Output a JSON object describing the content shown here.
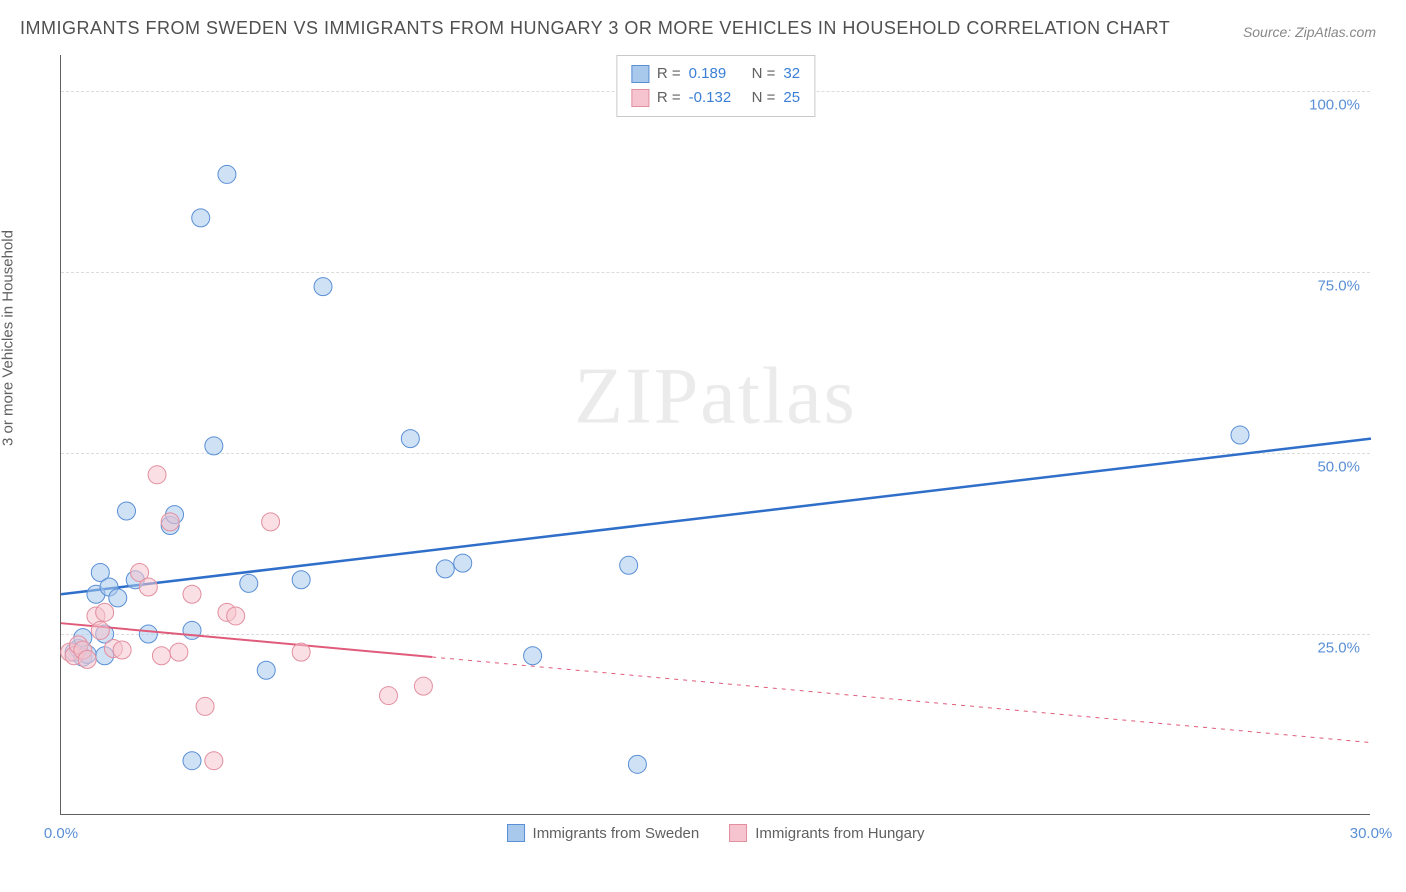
{
  "title": "IMMIGRANTS FROM SWEDEN VS IMMIGRANTS FROM HUNGARY 3 OR MORE VEHICLES IN HOUSEHOLD CORRELATION CHART",
  "source": "Source: ZipAtlas.com",
  "watermark": "ZIPatlas",
  "ylabel": "3 or more Vehicles in Household",
  "chart": {
    "type": "scatter",
    "background_color": "#ffffff",
    "grid_color": "#dcdcdc",
    "grid_dash": "4,4",
    "axis_color": "#606060",
    "tick_label_color": "#5a8fd6",
    "tick_fontsize": 15,
    "xlim": [
      0,
      30
    ],
    "ylim": [
      0,
      105
    ],
    "xticks": [
      {
        "v": 0,
        "label": "0.0%"
      },
      {
        "v": 30,
        "label": "30.0%"
      }
    ],
    "yticks": [
      {
        "v": 25,
        "label": "25.0%"
      },
      {
        "v": 50,
        "label": "50.0%"
      },
      {
        "v": 75,
        "label": "75.0%"
      },
      {
        "v": 100,
        "label": "100.0%"
      }
    ],
    "marker_radius": 9,
    "marker_opacity": 0.55,
    "series": [
      {
        "name": "Immigrants from Sweden",
        "fill": "#a8c8ec",
        "stroke": "#5a8fd6",
        "R": "0.189",
        "N": "32",
        "trend": {
          "x1": 0,
          "y1": 30.5,
          "x2": 30,
          "y2": 52,
          "stroke": "#2f6fc9",
          "width": 2.5,
          "solid_until_x": 30
        },
        "points": [
          [
            0.3,
            22.5
          ],
          [
            0.4,
            23.0
          ],
          [
            0.5,
            21.8
          ],
          [
            0.6,
            22.2
          ],
          [
            0.5,
            24.5
          ],
          [
            0.8,
            30.5
          ],
          [
            0.9,
            33.5
          ],
          [
            1.0,
            25.0
          ],
          [
            1.1,
            31.5
          ],
          [
            1.3,
            30.0
          ],
          [
            1.5,
            42.0
          ],
          [
            1.7,
            32.5
          ],
          [
            2.0,
            25.0
          ],
          [
            2.5,
            40.0
          ],
          [
            2.6,
            41.5
          ],
          [
            3.0,
            25.5
          ],
          [
            3.0,
            7.5
          ],
          [
            3.5,
            51.0
          ],
          [
            3.2,
            82.5
          ],
          [
            3.8,
            88.5
          ],
          [
            4.3,
            32.0
          ],
          [
            4.7,
            20.0
          ],
          [
            5.5,
            32.5
          ],
          [
            6.0,
            73.0
          ],
          [
            8.0,
            52.0
          ],
          [
            8.8,
            34.0
          ],
          [
            9.2,
            34.8
          ],
          [
            10.8,
            22.0
          ],
          [
            13.2,
            7.0
          ],
          [
            13.0,
            34.5
          ],
          [
            27.0,
            52.5
          ],
          [
            1.0,
            22.0
          ]
        ]
      },
      {
        "name": "Immigrants from Hungary",
        "fill": "#f5c4ce",
        "stroke": "#e28fa0",
        "R": "-0.132",
        "N": "25",
        "trend": {
          "x1": 0,
          "y1": 26.5,
          "x2": 30,
          "y2": 10,
          "stroke": "#e05b7a",
          "width": 2,
          "solid_until_x": 8.5
        },
        "points": [
          [
            0.2,
            22.5
          ],
          [
            0.3,
            22.0
          ],
          [
            0.4,
            23.5
          ],
          [
            0.5,
            22.8
          ],
          [
            0.6,
            21.5
          ],
          [
            0.8,
            27.5
          ],
          [
            0.9,
            25.5
          ],
          [
            1.0,
            28.0
          ],
          [
            1.2,
            23.0
          ],
          [
            1.4,
            22.8
          ],
          [
            1.8,
            33.5
          ],
          [
            2.0,
            31.5
          ],
          [
            2.2,
            47.0
          ],
          [
            2.5,
            40.5
          ],
          [
            2.7,
            22.5
          ],
          [
            3.0,
            30.5
          ],
          [
            3.3,
            15.0
          ],
          [
            3.5,
            7.5
          ],
          [
            3.8,
            28.0
          ],
          [
            4.0,
            27.5
          ],
          [
            4.8,
            40.5
          ],
          [
            5.5,
            22.5
          ],
          [
            7.5,
            16.5
          ],
          [
            8.3,
            17.8
          ],
          [
            2.3,
            22.0
          ]
        ]
      }
    ]
  },
  "legend": {
    "swatch_size": 18
  }
}
